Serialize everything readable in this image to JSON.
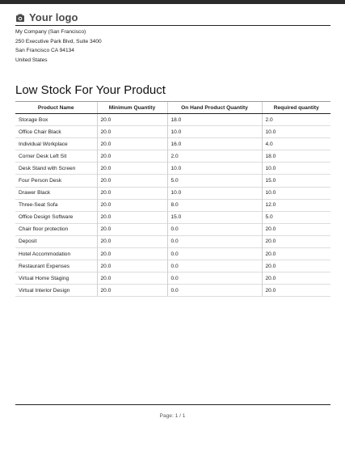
{
  "header": {
    "logo_text": "Your logo",
    "logo_icon": "camera-icon"
  },
  "company": {
    "line1": "My Company (San Francisco)",
    "line2": "250 Executive Park Blvd, Suite 3400",
    "line3": "San Francisco CA 94134",
    "line4": "United States"
  },
  "report": {
    "title": "Low Stock For Your Product",
    "columns": [
      "Product Name",
      "Minimum Quantity",
      "On Hand Product Quantity",
      "Required quantity"
    ],
    "rows": [
      {
        "name": "Storage Box",
        "min": "20.0",
        "onhand": "18.0",
        "required": "2.0"
      },
      {
        "name": "Office Chair Black",
        "min": "20.0",
        "onhand": "10.0",
        "required": "10.0"
      },
      {
        "name": "Individual Workplace",
        "min": "20.0",
        "onhand": "16.0",
        "required": "4.0"
      },
      {
        "name": "Corner Desk Left Sit",
        "min": "20.0",
        "onhand": "2.0",
        "required": "18.0"
      },
      {
        "name": "Desk Stand with Screen",
        "min": "20.0",
        "onhand": "10.0",
        "required": "10.0"
      },
      {
        "name": "Four Person Desk",
        "min": "20.0",
        "onhand": "5.0",
        "required": "15.0"
      },
      {
        "name": "Drawer Black",
        "min": "20.0",
        "onhand": "10.0",
        "required": "10.0"
      },
      {
        "name": "Three-Seat Sofa",
        "min": "20.0",
        "onhand": "8.0",
        "required": "12.0"
      },
      {
        "name": "Office Design Software",
        "min": "20.0",
        "onhand": "15.0",
        "required": "5.0"
      },
      {
        "name": "Chair floor protection",
        "min": "20.0",
        "onhand": "0.0",
        "required": "20.0"
      },
      {
        "name": "Deposit",
        "min": "20.0",
        "onhand": "0.0",
        "required": "20.0"
      },
      {
        "name": "Hotel Accommodation",
        "min": "20.0",
        "onhand": "0.0",
        "required": "20.0"
      },
      {
        "name": "Restaurant Expenses",
        "min": "20.0",
        "onhand": "0.0",
        "required": "20.0"
      },
      {
        "name": "Virtual Home Staging",
        "min": "20.0",
        "onhand": "0.0",
        "required": "20.0"
      },
      {
        "name": "Virtual Interior Design",
        "min": "20.0",
        "onhand": "0.0",
        "required": "20.0"
      }
    ]
  },
  "footer": {
    "page_label": "Page: 1 / 1"
  }
}
